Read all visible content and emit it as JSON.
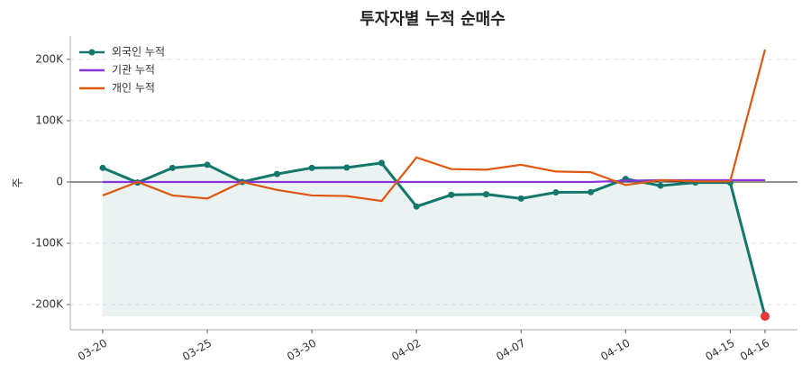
{
  "chart_data": {
    "type": "line",
    "title": "투자자별 누적 순매수",
    "ylabel": "주",
    "categories": [
      "03-20",
      null,
      null,
      "03-25",
      null,
      null,
      "03-30",
      null,
      null,
      "04-02",
      null,
      null,
      "04-07",
      null,
      null,
      "04-10",
      null,
      null,
      "04-15",
      "04-16"
    ],
    "series": [
      {
        "name": "외국인 누적",
        "color": "#13776b",
        "markers": true,
        "fill": true,
        "values": [
          23000,
          -1000,
          23000,
          28000,
          0,
          13000,
          23000,
          23500,
          31000,
          -40000,
          -21000,
          -20000,
          -27000,
          -17000,
          -16500,
          5000,
          -6000,
          -1000,
          -1000,
          -219000
        ]
      },
      {
        "name": "기관 누적",
        "color": "#8a35d8",
        "values": [
          0,
          0,
          0,
          0,
          0,
          0,
          0,
          0,
          0,
          0,
          0,
          0,
          0,
          0,
          0,
          2000,
          3000,
          3000,
          3000,
          3000
        ]
      },
      {
        "name": "개인 누적",
        "color": "#e0570f",
        "values": [
          -22000,
          0,
          -22000,
          -27000,
          0,
          -13000,
          -22000,
          -23000,
          -31000,
          40000,
          21000,
          20000,
          28000,
          17000,
          16000,
          -5000,
          3000,
          1000,
          1000,
          216000
        ]
      }
    ],
    "last_point_color": "#e53935",
    "ylim": [
      -241000,
      238000
    ],
    "yticks": [
      {
        "value": -200000,
        "label": "-200K"
      },
      {
        "value": -100000,
        "label": "-100K"
      },
      0,
      {
        "value": 100000,
        "label": "100K"
      },
      {
        "value": 200000,
        "label": "200K"
      }
    ],
    "grid": true,
    "legend": "upper-left"
  }
}
